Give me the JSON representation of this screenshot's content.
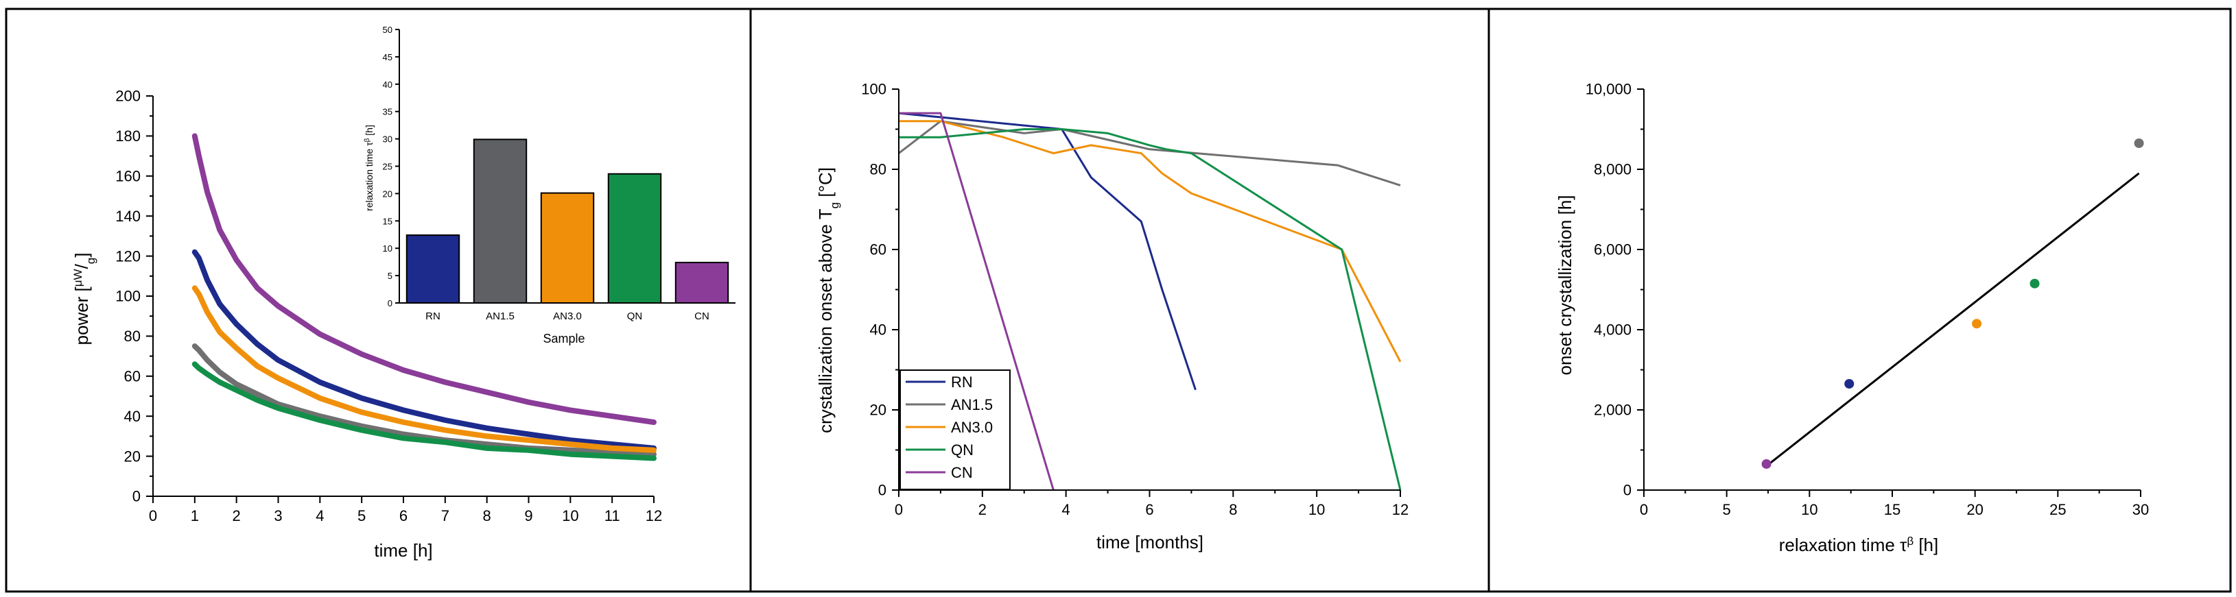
{
  "chart_data": [
    {
      "type": "line",
      "title": "",
      "xlabel": "time [h]",
      "ylabel_prefix": "power [",
      "ylabel_num": "μW",
      "ylabel_sep": "/",
      "ylabel_den": "g",
      "ylabel_suffix": "]",
      "xlim": [
        0,
        12
      ],
      "ylim": [
        0,
        200
      ],
      "xticks": [
        "0",
        "1",
        "2",
        "3",
        "4",
        "5",
        "6",
        "7",
        "8",
        "9",
        "10",
        "11",
        "12"
      ],
      "yticks": [
        "0",
        "20",
        "40",
        "60",
        "80",
        "100",
        "120",
        "140",
        "160",
        "180",
        "200"
      ],
      "series": [
        {
          "name": "RN",
          "color": "#1c2b8c",
          "x": [
            1,
            1.1,
            1.3,
            1.6,
            2,
            2.5,
            3,
            4,
            5,
            6,
            7,
            8,
            9,
            10,
            11,
            12
          ],
          "y": [
            122,
            119,
            108,
            96,
            86,
            76,
            68,
            57,
            49,
            43,
            38,
            34,
            31,
            28,
            26,
            24
          ]
        },
        {
          "name": "AN1.5",
          "color": "#707070",
          "x": [
            1,
            1.1,
            1.3,
            1.6,
            2,
            2.5,
            3,
            4,
            5,
            6,
            7,
            8,
            9,
            10,
            11,
            12
          ],
          "y": [
            75,
            73,
            68,
            62,
            56,
            51,
            46,
            40,
            35,
            31,
            28,
            26,
            24,
            23,
            22,
            21
          ]
        },
        {
          "name": "AN3.0",
          "color": "#f0900a",
          "x": [
            1,
            1.1,
            1.3,
            1.6,
            2,
            2.5,
            3,
            4,
            5,
            6,
            7,
            8,
            9,
            10,
            11,
            12
          ],
          "y": [
            104,
            101,
            92,
            82,
            74,
            65,
            59,
            49,
            42,
            37,
            33,
            30,
            28,
            26,
            24,
            23
          ]
        },
        {
          "name": "QN",
          "color": "#12904a",
          "x": [
            1,
            1.1,
            1.3,
            1.6,
            2,
            2.5,
            3,
            4,
            5,
            6,
            7,
            8,
            9,
            10,
            11,
            12
          ],
          "y": [
            66,
            64,
            61,
            57,
            53,
            48,
            44,
            38,
            33,
            29,
            27,
            24,
            23,
            21,
            20,
            19
          ]
        },
        {
          "name": "CN",
          "color": "#8a3c98",
          "x": [
            1,
            1.1,
            1.3,
            1.6,
            2,
            2.5,
            3,
            4,
            5,
            6,
            7,
            8,
            9,
            10,
            11,
            12
          ],
          "y": [
            180,
            170,
            152,
            133,
            118,
            104,
            95,
            81,
            71,
            63,
            57,
            52,
            47,
            43,
            40,
            37
          ]
        }
      ]
    },
    {
      "type": "bar",
      "title": "",
      "xlabel": "Sample",
      "ylabel": "relaxation time τ",
      "ylabel_sup": "β",
      "ylabel_unit": " [h]",
      "ylim": [
        0,
        50
      ],
      "yticks": [
        "0",
        "5",
        "10",
        "15",
        "20",
        "25",
        "30",
        "35",
        "40",
        "45",
        "50"
      ],
      "categories": [
        "RN",
        "AN1.5",
        "AN3.0",
        "QN",
        "CN"
      ],
      "values": [
        12.4,
        29.9,
        20.1,
        23.6,
        7.4
      ],
      "colors": [
        "#1c2b8c",
        "#5f6064",
        "#f0900a",
        "#12904a",
        "#8a3c98"
      ]
    },
    {
      "type": "line",
      "title": "",
      "xlabel": "time [months]",
      "ylabel": "crystallization onset above T",
      "ylabel_sub": "g",
      "ylabel_unit": " [°C]",
      "xlim": [
        0,
        12
      ],
      "ylim": [
        0,
        100
      ],
      "xticks": [
        "0",
        "2",
        "4",
        "6",
        "8",
        "10",
        "12"
      ],
      "yticks": [
        "0",
        "20",
        "40",
        "60",
        "80",
        "100"
      ],
      "legend_position": "bottom-left",
      "series": [
        {
          "name": "RN",
          "color": "#1c2b8c",
          "x": [
            0,
            1,
            3.9,
            4.6,
            5.8,
            6.3,
            7.1
          ],
          "y": [
            94,
            93,
            90,
            78,
            67,
            50,
            25
          ]
        },
        {
          "name": "AN1.5",
          "color": "#707070",
          "x": [
            0,
            1,
            3,
            3.9,
            6,
            10.5,
            12
          ],
          "y": [
            84,
            92,
            89,
            90,
            85,
            81,
            76
          ]
        },
        {
          "name": "AN3.0",
          "color": "#f0900a",
          "x": [
            0,
            1,
            2.5,
            3.7,
            4.6,
            5.8,
            6.3,
            7,
            10.6,
            12
          ],
          "y": [
            92,
            92,
            88,
            84,
            86,
            84,
            79,
            74,
            60,
            32
          ]
        },
        {
          "name": "QN",
          "color": "#12904a",
          "x": [
            0,
            1,
            3,
            3.9,
            5,
            6,
            6.4,
            7,
            10.6,
            12
          ],
          "y": [
            88,
            88,
            90,
            90,
            89,
            86,
            85,
            84,
            60,
            0
          ]
        },
        {
          "name": "CN",
          "color": "#8a3c98",
          "x": [
            0,
            1,
            3.7
          ],
          "y": [
            94,
            94,
            0
          ]
        }
      ]
    },
    {
      "type": "scatter",
      "title": "",
      "xlabel": "relaxation time τ",
      "xlabel_sup": "β",
      "xlabel_unit": " [h]",
      "ylabel": "onset crystallization [h]",
      "xlim": [
        0,
        30
      ],
      "ylim": [
        0,
        10000
      ],
      "xticks": [
        "0",
        "5",
        "10",
        "15",
        "20",
        "25",
        "30"
      ],
      "yticks": [
        "0",
        "2,000",
        "4,000",
        "6,000",
        "8,000",
        "10,000"
      ],
      "points": [
        {
          "name": "RN",
          "x": 12.4,
          "y": 2650,
          "color": "#1c2b8c"
        },
        {
          "name": "AN1.5",
          "x": 29.9,
          "y": 8650,
          "color": "#707070"
        },
        {
          "name": "AN3.0",
          "x": 20.1,
          "y": 4150,
          "color": "#f0900a"
        },
        {
          "name": "QN",
          "x": 23.6,
          "y": 5150,
          "color": "#12904a"
        },
        {
          "name": "CN",
          "x": 7.4,
          "y": 650,
          "color": "#8a3c98"
        }
      ],
      "fit_line": {
        "x": [
          7.4,
          29.9
        ],
        "y": [
          600,
          7900
        ],
        "color": "#000000"
      }
    }
  ]
}
